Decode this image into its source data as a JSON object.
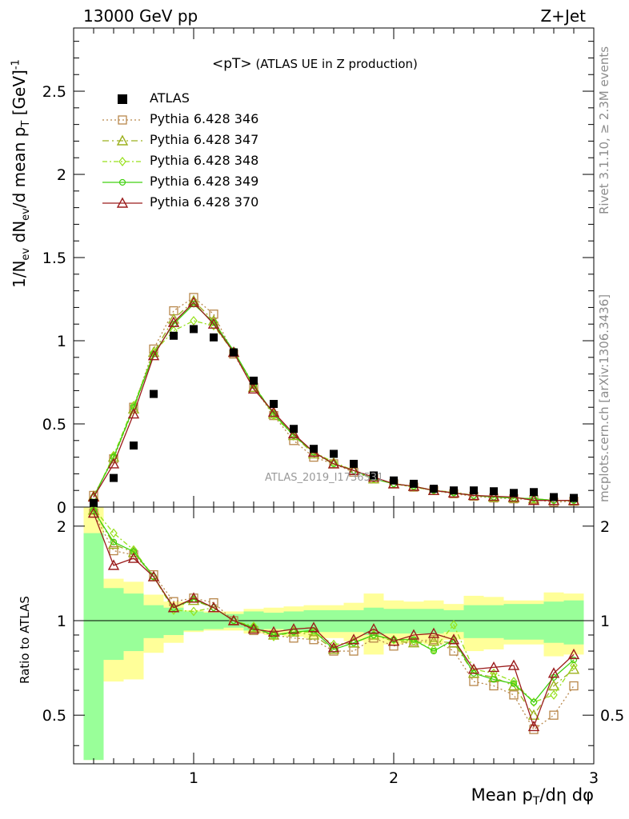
{
  "header": {
    "left": "13000 GeV pp",
    "right": "Z+Jet"
  },
  "side_labels": {
    "top": "Rivet 3.1.10, ≥ 2.3M events",
    "bottom": "mcplots.cern.ch [arXiv:1306.3436]"
  },
  "watermark": "ATLAS_2019_I1736531",
  "chart_data": {
    "type": "line",
    "title": "<pT> (ATLAS UE in Z production)",
    "title_main": "<pT>",
    "title_sub": " (ATLAS UE in Z production)",
    "xlabel": "Mean p_T/dη dφ",
    "ylabel": "1/N_ev dN_ev/d mean p_T [GeV]^-1",
    "ratio_ylabel": "Ratio to ATLAS",
    "xlim": [
      0.4,
      3.0
    ],
    "ylim": [
      0,
      2.88
    ],
    "ratio_ylim": [
      0.35,
      2.3
    ],
    "x_ticks": [
      1,
      2,
      3
    ],
    "y_ticks": [
      "0",
      "0.5",
      "1",
      "1.5",
      "2",
      "2.5"
    ],
    "ratio_ticks": [
      "0.5",
      "1",
      "2"
    ],
    "x": [
      0.5,
      0.6,
      0.7,
      0.8,
      0.9,
      1.0,
      1.1,
      1.2,
      1.3,
      1.4,
      1.5,
      1.6,
      1.7,
      1.8,
      1.9,
      2.0,
      2.1,
      2.2,
      2.3,
      2.4,
      2.5,
      2.6,
      2.7,
      2.8,
      2.9
    ],
    "data": {
      "name": "ATLAS",
      "color": "#000000",
      "values": [
        0.025,
        0.175,
        0.37,
        0.68,
        1.03,
        1.07,
        1.02,
        0.93,
        0.76,
        0.62,
        0.47,
        0.35,
        0.32,
        0.26,
        0.19,
        0.16,
        0.14,
        0.11,
        0.1,
        0.1,
        0.095,
        0.085,
        0.09,
        0.06,
        0.055
      ]
    },
    "band_edges": [
      0.45,
      0.55,
      0.65,
      0.75,
      0.85,
      0.95,
      1.05,
      1.15,
      1.25,
      1.35,
      1.45,
      1.55,
      1.65,
      1.75,
      1.85,
      1.95,
      2.05,
      2.15,
      2.25,
      2.35,
      2.45,
      2.55,
      2.65,
      2.75,
      2.85,
      2.95
    ],
    "band_stat": [
      [
        0.3,
        1.9
      ],
      [
        0.75,
        1.27
      ],
      [
        0.8,
        1.22
      ],
      [
        0.88,
        1.12
      ],
      [
        0.9,
        1.1
      ],
      [
        0.93,
        1.07
      ],
      [
        0.94,
        1.06
      ],
      [
        0.95,
        1.05
      ],
      [
        0.93,
        1.07
      ],
      [
        0.94,
        1.06
      ],
      [
        0.93,
        1.07
      ],
      [
        0.92,
        1.08
      ],
      [
        0.92,
        1.08
      ],
      [
        0.92,
        1.08
      ],
      [
        0.9,
        1.1
      ],
      [
        0.91,
        1.09
      ],
      [
        0.91,
        1.09
      ],
      [
        0.91,
        1.09
      ],
      [
        0.92,
        1.08
      ],
      [
        0.88,
        1.12
      ],
      [
        0.88,
        1.12
      ],
      [
        0.87,
        1.13
      ],
      [
        0.87,
        1.13
      ],
      [
        0.85,
        1.15
      ],
      [
        0.84,
        1.16
      ]
    ],
    "band_syst": [
      [
        0.3,
        2.3
      ],
      [
        0.64,
        1.36
      ],
      [
        0.65,
        1.33
      ],
      [
        0.79,
        1.21
      ],
      [
        0.85,
        1.15
      ],
      [
        0.92,
        1.08
      ],
      [
        0.93,
        1.07
      ],
      [
        0.93,
        1.07
      ],
      [
        0.91,
        1.09
      ],
      [
        0.9,
        1.1
      ],
      [
        0.89,
        1.11
      ],
      [
        0.88,
        1.12
      ],
      [
        0.88,
        1.12
      ],
      [
        0.86,
        1.14
      ],
      [
        0.78,
        1.22
      ],
      [
        0.84,
        1.16
      ],
      [
        0.85,
        1.15
      ],
      [
        0.84,
        1.16
      ],
      [
        0.87,
        1.13
      ],
      [
        0.8,
        1.2
      ],
      [
        0.81,
        1.19
      ],
      [
        0.84,
        1.16
      ],
      [
        0.84,
        1.16
      ],
      [
        0.77,
        1.23
      ],
      [
        0.78,
        1.22
      ]
    ],
    "series": [
      {
        "name": "Pythia 6.428 346",
        "color": "#b8874b",
        "dash": "2,3",
        "marker": "square",
        "values": [
          0.07,
          0.29,
          0.6,
          0.95,
          1.18,
          1.26,
          1.16,
          0.92,
          0.72,
          0.55,
          0.4,
          0.3,
          0.26,
          0.21,
          0.17,
          0.14,
          0.12,
          0.1,
          0.08,
          0.065,
          0.055,
          0.05,
          0.045,
          0.03,
          0.035
        ]
      },
      {
        "name": "Pythia 6.428 347",
        "color": "#9cb01d",
        "dash": "8,4,2,4",
        "marker": "triangle",
        "values": [
          0.065,
          0.3,
          0.59,
          0.93,
          1.13,
          1.24,
          1.12,
          0.93,
          0.72,
          0.56,
          0.43,
          0.32,
          0.26,
          0.22,
          0.17,
          0.14,
          0.125,
          0.1,
          0.085,
          0.07,
          0.06,
          0.055,
          0.05,
          0.04,
          0.038
        ]
      },
      {
        "name": "Pythia 6.428 348",
        "color": "#96e01a",
        "dash": "6,3,2,3",
        "marker": "diamond",
        "values": [
          0.06,
          0.31,
          0.61,
          0.93,
          1.06,
          1.12,
          1.09,
          0.93,
          0.74,
          0.55,
          0.43,
          0.33,
          0.27,
          0.22,
          0.17,
          0.14,
          0.12,
          0.1,
          0.09,
          0.07,
          0.06,
          0.055,
          0.05,
          0.04,
          0.04
        ]
      },
      {
        "name": "Pythia 6.428 349",
        "color": "#40d010",
        "dash": "none",
        "marker": "circle",
        "values": [
          0.06,
          0.3,
          0.6,
          0.92,
          1.1,
          1.22,
          1.11,
          0.94,
          0.73,
          0.56,
          0.43,
          0.33,
          0.26,
          0.22,
          0.17,
          0.14,
          0.125,
          0.1,
          0.085,
          0.07,
          0.06,
          0.055,
          0.05,
          0.04,
          0.04
        ]
      },
      {
        "name": "Pythia 6.428 370",
        "color": "#9b1c1c",
        "dash": "none",
        "marker": "triangle-open",
        "values": [
          0.06,
          0.26,
          0.56,
          0.91,
          1.11,
          1.23,
          1.1,
          0.93,
          0.71,
          0.57,
          0.44,
          0.33,
          0.26,
          0.22,
          0.18,
          0.14,
          0.125,
          0.1,
          0.085,
          0.07,
          0.065,
          0.06,
          0.04,
          0.04,
          0.04
        ]
      }
    ],
    "ratios": [
      [
        2.2,
        1.67,
        1.62,
        1.4,
        1.15,
        1.18,
        1.14,
        1.0,
        0.93,
        0.9,
        0.88,
        0.87,
        0.8,
        0.8,
        0.88,
        0.83,
        0.86,
        0.87,
        0.8,
        0.64,
        0.62,
        0.58,
        0.45,
        0.5,
        0.62
      ],
      [
        2.25,
        1.75,
        1.65,
        1.38,
        1.1,
        1.16,
        1.1,
        1.0,
        0.95,
        0.9,
        0.92,
        0.9,
        0.81,
        0.85,
        0.9,
        0.86,
        0.85,
        0.86,
        0.85,
        0.68,
        0.66,
        0.62,
        0.5,
        0.62,
        0.7
      ],
      [
        2.28,
        1.9,
        1.68,
        1.38,
        1.08,
        1.07,
        1.1,
        1.0,
        0.96,
        0.89,
        0.92,
        0.92,
        0.84,
        0.85,
        0.9,
        0.87,
        0.86,
        0.81,
        0.97,
        0.7,
        0.68,
        0.64,
        0.55,
        0.58,
        0.72
      ],
      [
        2.24,
        1.78,
        1.66,
        1.38,
        1.1,
        1.17,
        1.1,
        1.0,
        0.95,
        0.9,
        0.92,
        0.93,
        0.81,
        0.85,
        0.9,
        0.87,
        0.87,
        0.8,
        0.87,
        0.68,
        0.65,
        0.63,
        0.55,
        0.66,
        0.75
      ],
      [
        2.2,
        1.5,
        1.58,
        1.38,
        1.1,
        1.18,
        1.1,
        1.0,
        0.94,
        0.92,
        0.94,
        0.95,
        0.82,
        0.87,
        0.94,
        0.86,
        0.9,
        0.91,
        0.87,
        0.7,
        0.71,
        0.72,
        0.46,
        0.68,
        0.78
      ]
    ],
    "colors": {
      "stat_band": "#99ff99",
      "syst_band": "#ffff99"
    }
  }
}
